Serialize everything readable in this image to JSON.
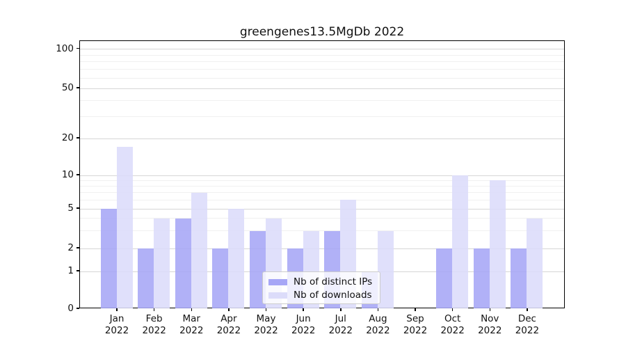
{
  "title": "greengenes13.5MgDb 2022",
  "colors": {
    "series_ips": "#a6a6f6",
    "series_downloads": "#dcdcfa",
    "grid_major": "#d6d6d6",
    "grid_minor": "#f0f0f0",
    "axis": "#000000"
  },
  "chart_data": {
    "type": "bar",
    "title": "greengenes13.5MgDb 2022",
    "xlabel": "",
    "ylabel": "",
    "yscale": "symlog",
    "ylim": [
      0,
      110
    ],
    "grid": "horizontal, major and minor",
    "legend_position": "bottom-center",
    "categories": [
      "Jan",
      "Feb",
      "Mar",
      "Apr",
      "May",
      "Jun",
      "Jul",
      "Aug",
      "Sep",
      "Oct",
      "Nov",
      "Dec"
    ],
    "category_year": "2022",
    "y_ticks": [
      0,
      1,
      2,
      5,
      10,
      20,
      50,
      100
    ],
    "y_minor_ticks": [
      3,
      4,
      6,
      7,
      8,
      9,
      30,
      40,
      60,
      70,
      80,
      90
    ],
    "series": [
      {
        "name": "Nb of distinct IPs",
        "color": "#a6a6f6",
        "values": [
          5,
          2,
          4,
          2,
          3,
          2,
          3,
          1,
          0,
          2,
          2,
          2
        ]
      },
      {
        "name": "Nb of downloads",
        "color": "#dcdcfa",
        "values": [
          17,
          4,
          7,
          5,
          4,
          3,
          6,
          3,
          0,
          10,
          9,
          4
        ]
      }
    ]
  }
}
